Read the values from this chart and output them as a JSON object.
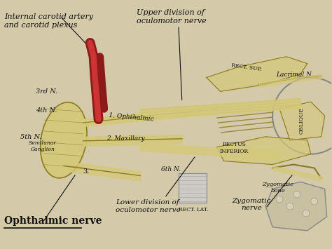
{
  "figsize": [
    4.74,
    3.55
  ],
  "dpi": 100,
  "bg_color": "#d4c9a8",
  "labels": {
    "top_left": "Internal carotid artery\nand carotid plexus",
    "top_center": "Upper division of\noculomotor nerve",
    "bottom_left_bold": "Ophthalmic nerve",
    "bottom_center": "Lower division of\noculomotor nerve",
    "bottom_right": "Zygomatic\nnerve",
    "top_right": "Lacrimal N.",
    "mid_left1": "3rd N.",
    "mid_left2": "4th N.",
    "mid_left3": "5th N.",
    "semilunar": "Semilunar\nGanglion",
    "ophthalmic_branch": "1. Ophthalmic",
    "maxillary_branch": "2. Maxillary",
    "sixth_n": "6th N.",
    "rect_lat": "RECT. LAT.",
    "rect_sup": "RECT. SUP.",
    "rectus_inf": "RECTUS\nINFERIOR",
    "zygomatic_bone": "Zygomatic\nbone",
    "oblique": "OBLIQUE",
    "three": "3."
  },
  "nerve_color": "#d4c87a",
  "nerve_dark": "#8a7a20",
  "blood_color": "#8b1a1a",
  "text_color": "#111111",
  "border_color": "#c8b88a"
}
